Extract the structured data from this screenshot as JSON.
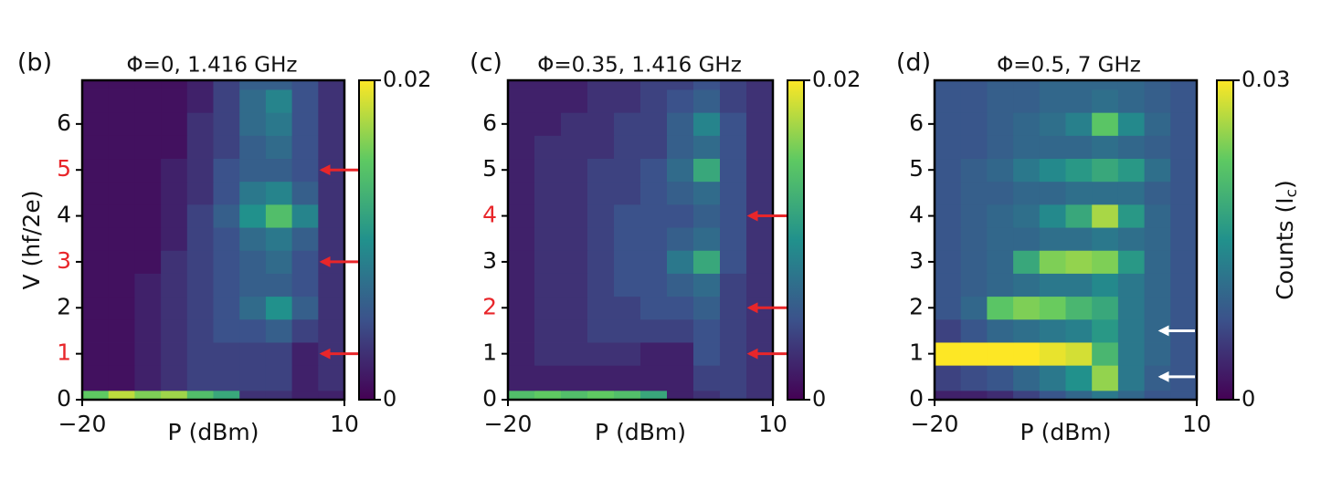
{
  "chart_data": [
    {
      "type": "heatmap",
      "panel": "(b)",
      "title": "Φ=0, 1.416 GHz",
      "x_label": "P (dBm)",
      "y_label": "V (hf/2e)",
      "xlim": [
        -20,
        10
      ],
      "ylim": [
        0,
        6.95
      ],
      "xticks": [
        {
          "value": -20,
          "label": "−20"
        },
        10
      ],
      "yticks": [
        0,
        1,
        2,
        3,
        4,
        5,
        6
      ],
      "highlight_ticks": [
        1,
        3,
        5
      ],
      "highlight_color": "#e8262a",
      "arrows": {
        "color": "#e8262a",
        "v": [
          1,
          3,
          5
        ]
      },
      "clim": [
        0,
        0.02
      ],
      "cticks": [
        0,
        0.02
      ],
      "colormap": "viridis",
      "x_edges": [
        -20,
        -17,
        -14,
        -11,
        -8,
        -5,
        -2,
        1,
        4,
        7,
        10
      ],
      "y_edges": [
        0,
        0.2,
        0.75,
        1.25,
        1.75,
        2.25,
        2.75,
        3.25,
        3.75,
        4.25,
        4.75,
        5.25,
        5.75,
        6.25,
        6.75,
        6.95
      ],
      "z": [
        [
          0.015,
          0.018,
          0.016,
          0.017,
          0.014,
          0.012,
          0.003,
          0.003,
          0.002,
          0.002
        ],
        [
          0.001,
          0.001,
          0.002,
          0.003,
          0.004,
          0.004,
          0.004,
          0.004,
          0.002,
          0.003
        ],
        [
          0.001,
          0.001,
          0.002,
          0.003,
          0.004,
          0.004,
          0.004,
          0.004,
          0.002,
          0.003
        ],
        [
          0.001,
          0.001,
          0.002,
          0.003,
          0.004,
          0.005,
          0.005,
          0.006,
          0.004,
          0.003
        ],
        [
          0.001,
          0.001,
          0.002,
          0.003,
          0.004,
          0.005,
          0.007,
          0.01,
          0.006,
          0.003
        ],
        [
          0.001,
          0.001,
          0.002,
          0.003,
          0.004,
          0.005,
          0.006,
          0.006,
          0.005,
          0.003
        ],
        [
          0.001,
          0.001,
          0.001,
          0.003,
          0.004,
          0.005,
          0.006,
          0.007,
          0.005,
          0.003
        ],
        [
          0.001,
          0.001,
          0.001,
          0.002,
          0.004,
          0.005,
          0.007,
          0.008,
          0.006,
          0.003
        ],
        [
          0.001,
          0.001,
          0.001,
          0.002,
          0.004,
          0.006,
          0.01,
          0.014,
          0.009,
          0.003
        ],
        [
          0.001,
          0.001,
          0.001,
          0.002,
          0.003,
          0.005,
          0.008,
          0.009,
          0.006,
          0.003
        ],
        [
          0.001,
          0.001,
          0.001,
          0.002,
          0.003,
          0.005,
          0.006,
          0.006,
          0.005,
          0.003
        ],
        [
          0.001,
          0.001,
          0.001,
          0.001,
          0.003,
          0.004,
          0.006,
          0.007,
          0.005,
          0.003
        ],
        [
          0.001,
          0.001,
          0.001,
          0.001,
          0.003,
          0.004,
          0.007,
          0.008,
          0.005,
          0.003
        ],
        [
          0.001,
          0.001,
          0.001,
          0.001,
          0.002,
          0.004,
          0.007,
          0.009,
          0.005,
          0.003
        ],
        [
          0.001,
          0.001,
          0.001,
          0.001,
          0.002,
          0.004,
          0.006,
          0.006,
          0.005,
          0.003
        ]
      ]
    },
    {
      "type": "heatmap",
      "panel": "(c)",
      "title": "Φ=0.35, 1.416 GHz",
      "x_label": "P (dBm)",
      "xlim": [
        -20,
        10
      ],
      "ylim": [
        0,
        6.95
      ],
      "xticks": [
        {
          "value": -20,
          "label": "−20"
        },
        10
      ],
      "yticks": [
        0,
        1,
        2,
        3,
        4,
        5,
        6
      ],
      "highlight_ticks": [
        2,
        4
      ],
      "highlight_color": "#e8262a",
      "arrows": {
        "color": "#e8262a",
        "v": [
          1,
          2,
          4
        ]
      },
      "clim": [
        0,
        0.02
      ],
      "cticks": [
        0,
        0.02
      ],
      "colormap": "viridis",
      "x_edges": [
        -20,
        -17,
        -14,
        -11,
        -8,
        -5,
        -2,
        1,
        4,
        7,
        10
      ],
      "y_edges": [
        0,
        0.2,
        0.75,
        1.25,
        1.75,
        2.25,
        2.75,
        3.25,
        3.75,
        4.25,
        4.75,
        5.25,
        5.75,
        6.25,
        6.75,
        6.95
      ],
      "z": [
        [
          0.014,
          0.015,
          0.014,
          0.015,
          0.014,
          0.012,
          0.002,
          0.003,
          0.004,
          0.003
        ],
        [
          0.002,
          0.002,
          0.002,
          0.002,
          0.002,
          0.002,
          0.002,
          0.004,
          0.004,
          0.003
        ],
        [
          0.002,
          0.003,
          0.003,
          0.003,
          0.003,
          0.002,
          0.002,
          0.005,
          0.004,
          0.003
        ],
        [
          0.002,
          0.003,
          0.003,
          0.004,
          0.004,
          0.004,
          0.004,
          0.005,
          0.004,
          0.003
        ],
        [
          0.002,
          0.003,
          0.003,
          0.004,
          0.004,
          0.005,
          0.005,
          0.006,
          0.004,
          0.003
        ],
        [
          0.002,
          0.003,
          0.003,
          0.004,
          0.005,
          0.005,
          0.006,
          0.007,
          0.004,
          0.003
        ],
        [
          0.002,
          0.003,
          0.003,
          0.004,
          0.005,
          0.005,
          0.008,
          0.012,
          0.005,
          0.003
        ],
        [
          0.002,
          0.003,
          0.003,
          0.004,
          0.005,
          0.005,
          0.006,
          0.007,
          0.005,
          0.003
        ],
        [
          0.002,
          0.003,
          0.003,
          0.004,
          0.005,
          0.005,
          0.005,
          0.006,
          0.005,
          0.003
        ],
        [
          0.002,
          0.003,
          0.003,
          0.004,
          0.004,
          0.005,
          0.006,
          0.007,
          0.005,
          0.003
        ],
        [
          0.002,
          0.003,
          0.003,
          0.004,
          0.004,
          0.005,
          0.007,
          0.012,
          0.005,
          0.003
        ],
        [
          0.002,
          0.003,
          0.003,
          0.003,
          0.004,
          0.004,
          0.006,
          0.007,
          0.005,
          0.003
        ],
        [
          0.002,
          0.002,
          0.003,
          0.003,
          0.004,
          0.004,
          0.006,
          0.009,
          0.005,
          0.003
        ],
        [
          0.002,
          0.002,
          0.002,
          0.003,
          0.003,
          0.004,
          0.005,
          0.006,
          0.004,
          0.003
        ],
        [
          0.002,
          0.002,
          0.002,
          0.003,
          0.003,
          0.004,
          0.004,
          0.005,
          0.004,
          0.003
        ]
      ]
    },
    {
      "type": "heatmap",
      "panel": "(d)",
      "title": "Φ=0.5, 7 GHz",
      "x_label": "P (dBm)",
      "colorbar_label": [
        "Counts (I",
        "c",
        ")"
      ],
      "xlim": [
        -20,
        10
      ],
      "ylim": [
        0,
        6.95
      ],
      "xticks": [
        {
          "value": -20,
          "label": "−20"
        },
        10
      ],
      "yticks": [
        0,
        1,
        2,
        3,
        4,
        5,
        6
      ],
      "highlight_ticks": [],
      "highlight_color": "#e8262a",
      "arrows": {
        "color": "#ffffff",
        "v": [
          0.5,
          1.5
        ]
      },
      "clim": [
        0,
        0.03
      ],
      "cticks": [
        0,
        0.03
      ],
      "colormap": "viridis",
      "x_edges": [
        -20,
        -17,
        -14,
        -11,
        -8,
        -5,
        -2,
        1,
        4,
        7,
        10
      ],
      "y_edges": [
        0,
        0.2,
        0.75,
        1.25,
        1.75,
        2.25,
        2.75,
        3.25,
        3.75,
        4.25,
        4.75,
        5.25,
        5.75,
        6.25,
        6.75,
        6.95
      ],
      "z": [
        [
          0.003,
          0.003,
          0.004,
          0.006,
          0.008,
          0.01,
          0.012,
          0.01,
          0.008,
          0.008
        ],
        [
          0.006,
          0.007,
          0.008,
          0.01,
          0.012,
          0.015,
          0.025,
          0.012,
          0.009,
          0.008
        ],
        [
          0.03,
          0.03,
          0.03,
          0.03,
          0.029,
          0.028,
          0.02,
          0.012,
          0.01,
          0.008
        ],
        [
          0.006,
          0.008,
          0.01,
          0.011,
          0.012,
          0.013,
          0.016,
          0.012,
          0.01,
          0.008
        ],
        [
          0.008,
          0.01,
          0.022,
          0.024,
          0.023,
          0.02,
          0.018,
          0.012,
          0.01,
          0.008
        ],
        [
          0.008,
          0.009,
          0.01,
          0.011,
          0.012,
          0.012,
          0.014,
          0.012,
          0.01,
          0.008
        ],
        [
          0.008,
          0.009,
          0.01,
          0.018,
          0.024,
          0.025,
          0.024,
          0.016,
          0.01,
          0.008
        ],
        [
          0.008,
          0.009,
          0.01,
          0.01,
          0.011,
          0.011,
          0.012,
          0.011,
          0.01,
          0.008
        ],
        [
          0.008,
          0.009,
          0.01,
          0.011,
          0.014,
          0.018,
          0.026,
          0.016,
          0.01,
          0.008
        ],
        [
          0.008,
          0.009,
          0.009,
          0.01,
          0.01,
          0.011,
          0.011,
          0.011,
          0.009,
          0.008
        ],
        [
          0.008,
          0.009,
          0.01,
          0.012,
          0.014,
          0.016,
          0.018,
          0.016,
          0.011,
          0.008
        ],
        [
          0.008,
          0.008,
          0.009,
          0.01,
          0.01,
          0.01,
          0.011,
          0.01,
          0.009,
          0.008
        ],
        [
          0.008,
          0.008,
          0.009,
          0.01,
          0.011,
          0.013,
          0.022,
          0.014,
          0.01,
          0.008
        ],
        [
          0.008,
          0.008,
          0.009,
          0.009,
          0.01,
          0.01,
          0.011,
          0.01,
          0.009,
          0.008
        ],
        [
          0.008,
          0.008,
          0.009,
          0.009,
          0.01,
          0.01,
          0.01,
          0.01,
          0.009,
          0.008
        ]
      ]
    }
  ]
}
